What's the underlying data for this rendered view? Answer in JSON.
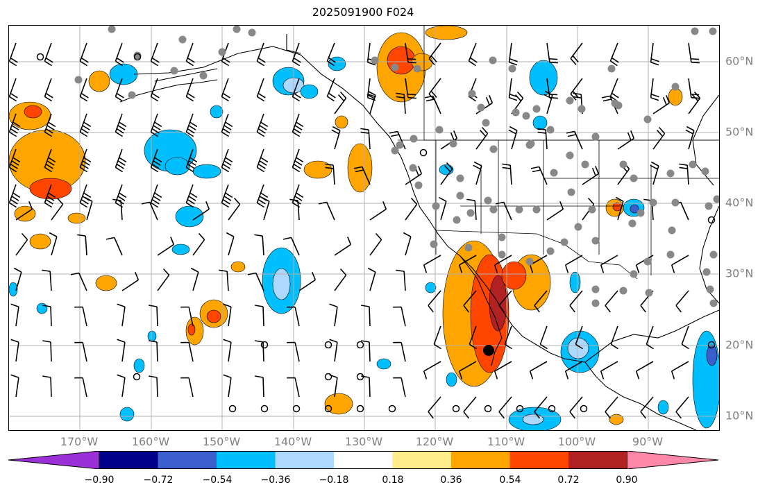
{
  "title": "2025091900 F024",
  "latitude_labels": [
    "60°N",
    "50°N",
    "40°N",
    "30°N",
    "20°N",
    "10°N"
  ],
  "longitude_labels": [
    "170°W",
    "160°W",
    "150°W",
    "140°W",
    "130°W",
    "120°W",
    "110°W",
    "100°W",
    "90°W"
  ],
  "colorbar": {
    "ticks": [
      "−0.90",
      "−0.72",
      "−0.54",
      "−0.36",
      "−0.18",
      "0.18",
      "0.36",
      "0.54",
      "0.72",
      "0.90"
    ],
    "colors": [
      "#9b30d9",
      "#00008b",
      "#3a5fcd",
      "#00bfff",
      "#add8ff",
      "#ffffff",
      "#ffec8b",
      "#ffa500",
      "#ff4500",
      "#b22222",
      "#ff88aa"
    ]
  },
  "map": {
    "lon_range": [
      -180,
      -80
    ],
    "lat_range": [
      8,
      65
    ],
    "grid": true,
    "fill_colors": {
      "orange": "#ffa500",
      "red": "#ff4500",
      "darkred": "#b22222",
      "lightyellow": "#ffec8b",
      "blue": "#00bfff",
      "lightblue": "#add8ff",
      "royal": "#3a5fcd"
    },
    "station_dot_color": "#888888",
    "storm_marker_color": "#000000"
  }
}
